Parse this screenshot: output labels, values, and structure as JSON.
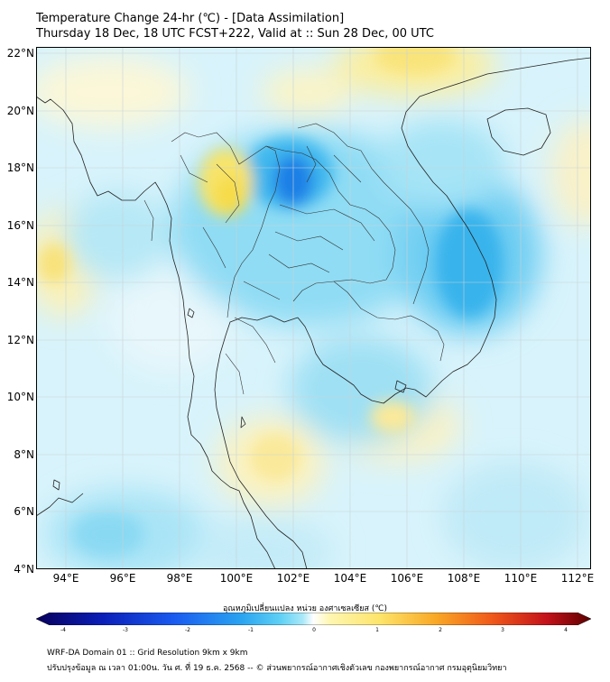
{
  "title": {
    "line1": "Temperature Change 24-hr (℃) - [Data Assimilation]",
    "line2": "Thursday 18 Dec, 18 UTC FCST+222, Valid at :: Sun 28 Dec, 00 UTC"
  },
  "map": {
    "y_axis_labels": [
      "22°N",
      "20°N",
      "18°N",
      "16°N",
      "14°N",
      "12°N",
      "10°N",
      "8°N",
      "6°N",
      "4°N"
    ],
    "x_axis_labels": [
      "94°E",
      "96°E",
      "98°E",
      "100°E",
      "102°E",
      "104°E",
      "106°E",
      "108°E",
      "110°E",
      "112°E"
    ],
    "field_regions": [
      {
        "name": "cold-core-laos-thailand",
        "level": -2
      },
      {
        "name": "cold-east-vietnam",
        "level": -1
      },
      {
        "name": "warm-northern-thailand",
        "level": 1
      },
      {
        "name": "warm-south-china",
        "level": 1
      },
      {
        "name": "warm-west-sea",
        "level": 1
      },
      {
        "name": "warm-mekong-delta",
        "level": 1
      }
    ]
  },
  "colorbar": {
    "title": "อุณหภูมิเปลี่ยนแปลง หน่วย องศาเซลเซียส (℃)",
    "ticks": [
      "-4",
      "-3",
      "-2",
      "-1",
      "0",
      "1",
      "2",
      "3",
      "4"
    ],
    "colors": [
      "#08005c",
      "#0b1fb8",
      "#1a5cf0",
      "#2aa4f0",
      "#5fd0f5",
      "#a8e8f8",
      "#ffffff",
      "#fff6b0",
      "#fde46a",
      "#f9a825",
      "#f05a1a",
      "#c4121a",
      "#5c0000"
    ]
  },
  "footer": {
    "line1": "WRF-DA Domain 01 :: Grid Resolution 9km x 9km",
    "line2": "ปรับปรุงข้อมูล ณ เวลา 01:00น. วัน ศ. ที่ 19 ธ.ค. 2568 -- © ส่วนพยากรณ์อากาศเชิงตัวเลข กองพยากรณ์อากาศ กรมอุตุนิยมวิทยา"
  }
}
